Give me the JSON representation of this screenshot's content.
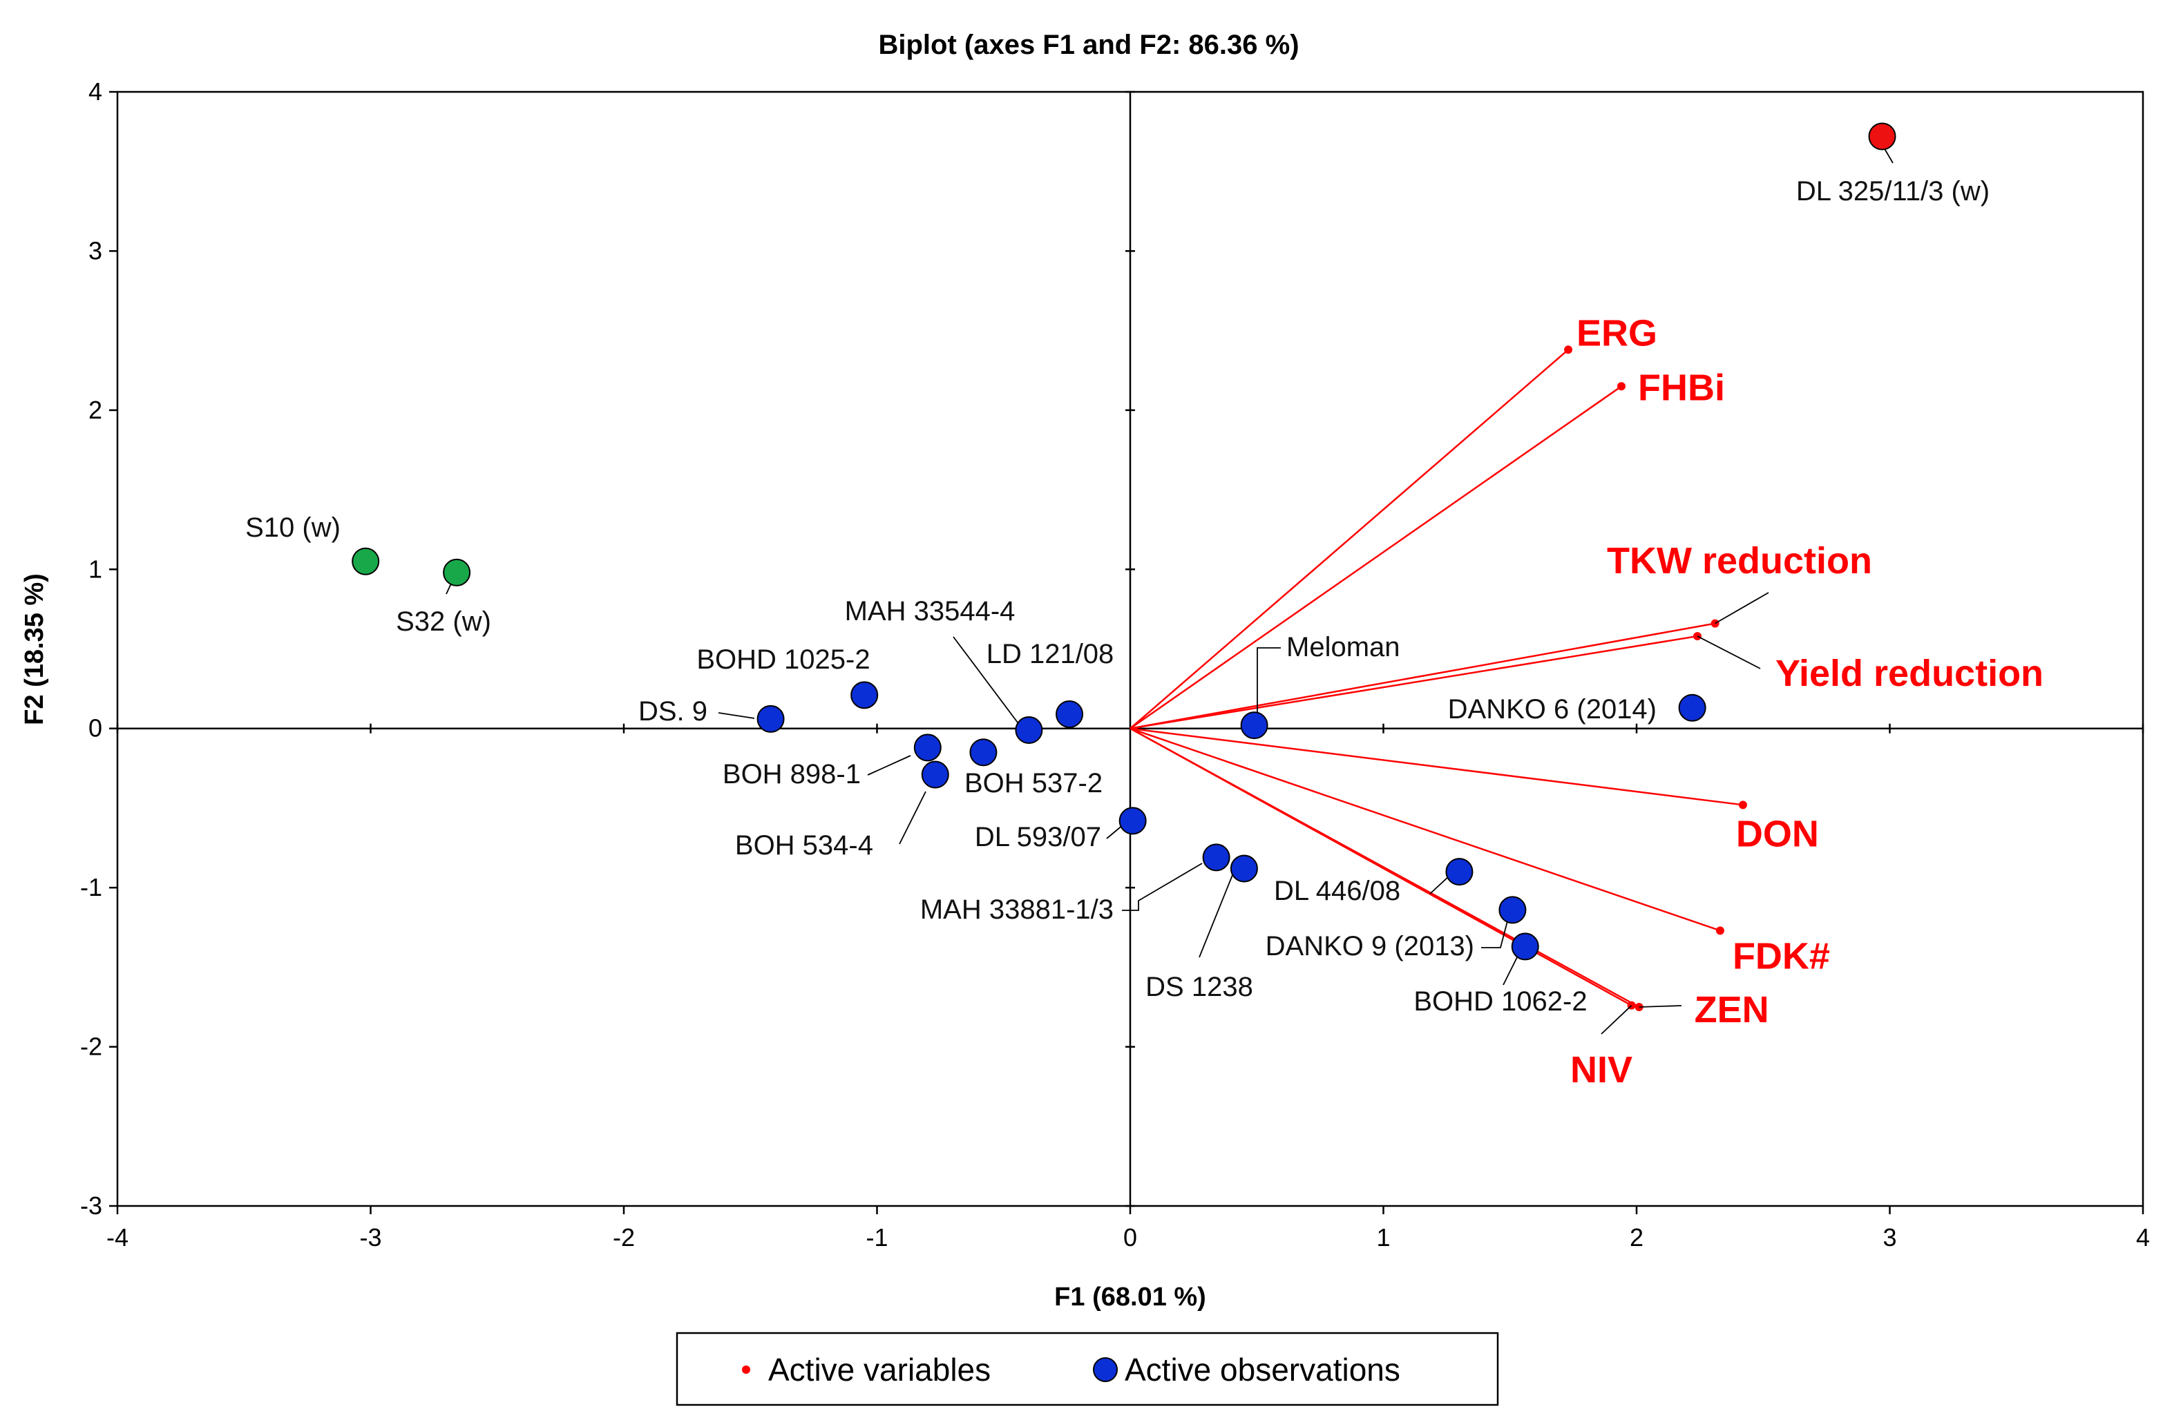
{
  "chart_data": {
    "type": "scatter",
    "subtype": "pca-biplot",
    "title": "Biplot (axes F1 and F2: 86.36 %)",
    "xlabel": "F1 (68.01 %)",
    "ylabel": "F2 (18.35 %)",
    "xlim": [
      -4,
      4
    ],
    "ylim": [
      -3,
      4
    ],
    "xticks": [
      "-4",
      "-3",
      "-2",
      "-1",
      "0",
      "1",
      "2",
      "3",
      "4"
    ],
    "yticks": [
      "-3",
      "-2",
      "-1",
      "0",
      "1",
      "2",
      "3",
      "4"
    ],
    "legend": {
      "position": "bottom",
      "entries": [
        {
          "name": "Active variables",
          "color": "#ff0000",
          "marker": "small-dot"
        },
        {
          "name": "Active observations",
          "color": "#0b2fd6",
          "marker": "circle"
        }
      ]
    },
    "colors": {
      "variable": "#ff0000",
      "observation": "#0b2fd6",
      "highlight_red": "#ee1111",
      "highlight_green": "#18a84a",
      "axis": "#000000"
    },
    "variables": [
      {
        "name": "ERG",
        "x": 1.73,
        "y": 2.38
      },
      {
        "name": "FHBi",
        "x": 1.94,
        "y": 2.15
      },
      {
        "name": "TKW reduction",
        "x": 2.31,
        "y": 0.66
      },
      {
        "name": "Yield reduction",
        "x": 2.24,
        "y": 0.58
      },
      {
        "name": "DON",
        "x": 2.42,
        "y": -0.48
      },
      {
        "name": "FDK#",
        "x": 2.33,
        "y": -1.27
      },
      {
        "name": "ZEN",
        "x": 2.01,
        "y": -1.75
      },
      {
        "name": "NIV",
        "x": 1.98,
        "y": -1.74
      }
    ],
    "observations": [
      {
        "name": "DL 325/11/3 (w)",
        "x": 2.97,
        "y": 3.72,
        "group": "red"
      },
      {
        "name": "S10 (w)",
        "x": -3.02,
        "y": 1.05,
        "group": "green"
      },
      {
        "name": "S32 (w)",
        "x": -2.66,
        "y": 0.98,
        "group": "green"
      },
      {
        "name": "DS. 9",
        "x": -1.42,
        "y": 0.06,
        "group": "blue"
      },
      {
        "name": "BOHD 1025-2",
        "x": -1.05,
        "y": 0.21,
        "group": "blue"
      },
      {
        "name": "MAH 33544-4",
        "x": -0.4,
        "y": -0.01,
        "group": "blue"
      },
      {
        "name": "LD 121/08",
        "x": -0.24,
        "y": 0.09,
        "group": "blue"
      },
      {
        "name": "BOH 898-1",
        "x": -0.8,
        "y": -0.12,
        "group": "blue"
      },
      {
        "name": "BOH 534-4",
        "x": -0.77,
        "y": -0.29,
        "group": "blue"
      },
      {
        "name": "BOH 537-2",
        "x": -0.58,
        "y": -0.15,
        "group": "blue"
      },
      {
        "name": "Meloman",
        "x": 0.49,
        "y": 0.02,
        "group": "blue"
      },
      {
        "name": "DANKO 6 (2014)",
        "x": 2.22,
        "y": 0.13,
        "group": "blue"
      },
      {
        "name": "DL 593/07",
        "x": 0.01,
        "y": -0.58,
        "group": "blue"
      },
      {
        "name": "MAH 33881-1/3",
        "x": 0.34,
        "y": -0.81,
        "group": "blue"
      },
      {
        "name": "DS 1238",
        "x": 0.45,
        "y": -0.88,
        "group": "blue"
      },
      {
        "name": "DL 446/08",
        "x": 1.3,
        "y": -0.9,
        "group": "blue"
      },
      {
        "name": "DANKO 9 (2013)",
        "x": 1.51,
        "y": -1.14,
        "group": "blue"
      },
      {
        "name": "BOHD 1062-2",
        "x": 1.56,
        "y": -1.37,
        "group": "blue"
      }
    ]
  }
}
